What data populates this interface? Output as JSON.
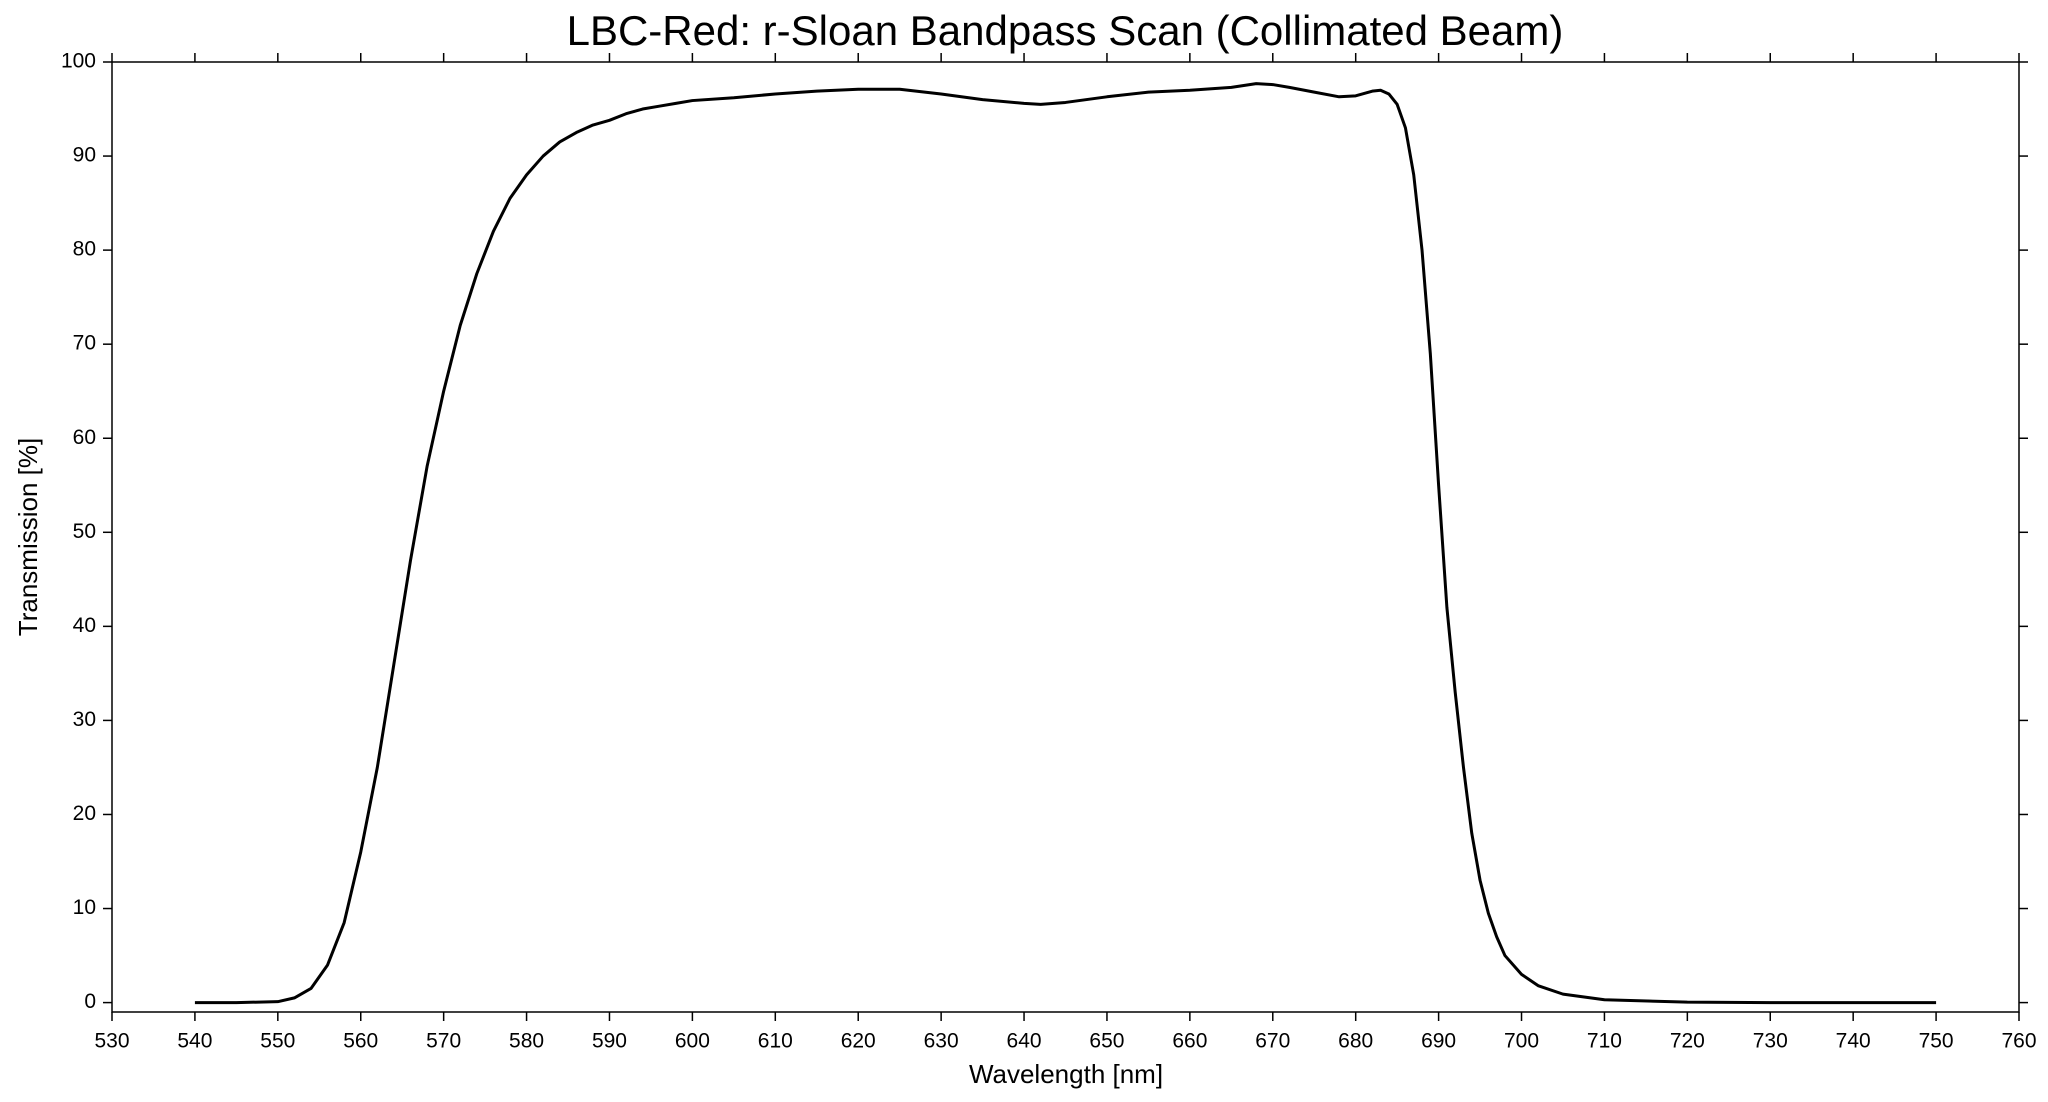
{
  "chart_data": {
    "type": "line",
    "title": "LBC-Red: r-Sloan Bandpass Scan (Collimated Beam)",
    "x_label": "Wavelength [nm]",
    "y_label": "Transmission [%]",
    "xlim": [
      530,
      760
    ],
    "ylim": [
      -1,
      100
    ],
    "xticks": [
      530,
      540,
      550,
      560,
      570,
      580,
      590,
      600,
      610,
      620,
      630,
      640,
      650,
      660,
      670,
      680,
      690,
      700,
      710,
      720,
      730,
      740,
      750,
      760
    ],
    "yticks": [
      0,
      10,
      20,
      30,
      40,
      50,
      60,
      70,
      80,
      90,
      100
    ],
    "series": [
      {
        "color": "#000000",
        "x": [
          540,
          545,
          550,
          552,
          554,
          556,
          558,
          560,
          562,
          564,
          566,
          568,
          570,
          572,
          574,
          576,
          578,
          580,
          582,
          584,
          586,
          588,
          590,
          592,
          594,
          596,
          598,
          600,
          605,
          610,
          615,
          620,
          625,
          630,
          635,
          640,
          642,
          645,
          650,
          655,
          660,
          665,
          668,
          670,
          672,
          675,
          678,
          680,
          682,
          683,
          684,
          685,
          686,
          687,
          688,
          689,
          690,
          691,
          692,
          693,
          694,
          695,
          696,
          697,
          698,
          700,
          702,
          705,
          710,
          720,
          730,
          750
        ],
        "values": [
          0,
          0,
          0.1,
          0.5,
          1.5,
          4,
          8.5,
          16,
          25,
          36,
          47,
          57,
          65,
          72,
          77.5,
          82,
          85.5,
          88,
          90,
          91.5,
          92.5,
          93.3,
          93.8,
          94.5,
          95,
          95.3,
          95.6,
          95.9,
          96.2,
          96.6,
          96.9,
          97.1,
          97.1,
          96.6,
          96,
          95.6,
          95.5,
          95.7,
          96.3,
          96.8,
          97,
          97.3,
          97.7,
          97.6,
          97.3,
          96.8,
          96.3,
          96.4,
          96.9,
          97,
          96.6,
          95.5,
          93,
          88,
          80,
          69,
          55,
          42,
          33,
          25,
          18,
          13,
          9.5,
          7,
          5,
          3,
          1.8,
          0.9,
          0.3,
          0.05,
          0,
          0
        ]
      }
    ]
  }
}
